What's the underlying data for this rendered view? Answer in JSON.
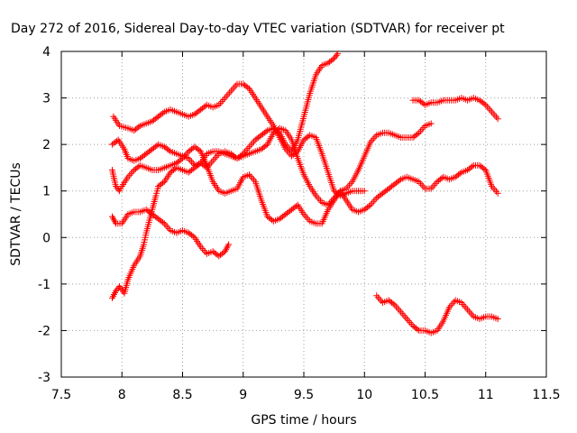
{
  "chart_data": {
    "type": "scatter",
    "title": "Day 272 of 2016, Sidereal Day-to-day VTEC variation (SDTVAR) for receiver pt",
    "xlabel": "GPS time / hours",
    "ylabel": "SDTVAR / TECUs",
    "xlim": [
      7.5,
      11.5
    ],
    "ylim": [
      -3,
      4
    ],
    "xticks": [
      7.5,
      8,
      8.5,
      9,
      9.5,
      10,
      10.5,
      11,
      11.5
    ],
    "xtick_labels": [
      "7.5",
      "8",
      "8.5",
      "9",
      "9.5",
      "10",
      "10.5",
      "11",
      "11.5"
    ],
    "yticks": [
      -3,
      -2,
      -1,
      0,
      1,
      2,
      3,
      4
    ],
    "ytick_labels": [
      "-3",
      "-2",
      "-1",
      "0",
      "1",
      "2",
      "3",
      "4"
    ],
    "grid": true,
    "marker": "+",
    "color": "#ff0000",
    "series": [
      {
        "name": "s1",
        "points": [
          [
            7.93,
            2.6
          ],
          [
            7.98,
            2.4
          ],
          [
            8.05,
            2.35
          ],
          [
            8.1,
            2.3
          ],
          [
            8.15,
            2.4
          ],
          [
            8.2,
            2.45
          ],
          [
            8.25,
            2.5
          ],
          [
            8.3,
            2.6
          ],
          [
            8.35,
            2.7
          ],
          [
            8.4,
            2.75
          ],
          [
            8.45,
            2.7
          ],
          [
            8.5,
            2.65
          ],
          [
            8.55,
            2.6
          ],
          [
            8.6,
            2.65
          ],
          [
            8.65,
            2.75
          ],
          [
            8.7,
            2.85
          ],
          [
            8.75,
            2.8
          ],
          [
            8.8,
            2.85
          ],
          [
            8.85,
            3.0
          ],
          [
            8.9,
            3.15
          ],
          [
            8.95,
            3.3
          ],
          [
            9.0,
            3.3
          ],
          [
            9.05,
            3.2
          ],
          [
            9.1,
            3.0
          ],
          [
            9.15,
            2.8
          ],
          [
            9.2,
            2.6
          ],
          [
            9.25,
            2.4
          ],
          [
            9.3,
            2.15
          ],
          [
            9.35,
            1.9
          ],
          [
            9.4,
            1.75
          ],
          [
            9.45,
            1.85
          ],
          [
            9.5,
            2.1
          ],
          [
            9.55,
            2.2
          ],
          [
            9.6,
            2.15
          ],
          [
            9.65,
            1.8
          ],
          [
            9.7,
            1.4
          ],
          [
            9.75,
            1.0
          ],
          [
            9.8,
            0.9
          ],
          [
            9.85,
            0.95
          ],
          [
            9.9,
            1.0
          ],
          [
            9.95,
            1.0
          ],
          [
            10.0,
            1.0
          ]
        ]
      },
      {
        "name": "s2",
        "points": [
          [
            7.92,
            2.0
          ],
          [
            7.97,
            2.1
          ],
          [
            8.02,
            1.9
          ],
          [
            8.05,
            1.7
          ],
          [
            8.1,
            1.65
          ],
          [
            8.15,
            1.7
          ],
          [
            8.2,
            1.8
          ],
          [
            8.25,
            1.9
          ],
          [
            8.3,
            2.0
          ],
          [
            8.35,
            1.95
          ],
          [
            8.4,
            1.85
          ],
          [
            8.45,
            1.8
          ],
          [
            8.5,
            1.75
          ],
          [
            8.55,
            1.7
          ],
          [
            8.6,
            1.55
          ],
          [
            8.65,
            1.6
          ],
          [
            8.7,
            1.8
          ],
          [
            8.75,
            1.85
          ],
          [
            8.8,
            1.85
          ],
          [
            8.85,
            1.8
          ],
          [
            8.9,
            1.75
          ],
          [
            8.95,
            1.7
          ],
          [
            9.0,
            1.75
          ],
          [
            9.05,
            1.8
          ],
          [
            9.1,
            1.85
          ],
          [
            9.15,
            1.9
          ],
          [
            9.2,
            2.0
          ],
          [
            9.25,
            2.25
          ],
          [
            9.3,
            2.35
          ],
          [
            9.35,
            2.3
          ],
          [
            9.4,
            2.1
          ],
          [
            9.45,
            1.7
          ],
          [
            9.5,
            1.35
          ],
          [
            9.55,
            1.1
          ],
          [
            9.6,
            0.9
          ],
          [
            9.65,
            0.75
          ],
          [
            9.7,
            0.7
          ],
          [
            9.75,
            0.85
          ],
          [
            9.8,
            1.0
          ],
          [
            9.85,
            1.05
          ],
          [
            9.9,
            1.2
          ],
          [
            9.95,
            1.45
          ],
          [
            10.0,
            1.75
          ],
          [
            10.05,
            2.05
          ],
          [
            10.1,
            2.2
          ],
          [
            10.15,
            2.25
          ],
          [
            10.2,
            2.25
          ],
          [
            10.25,
            2.2
          ],
          [
            10.3,
            2.15
          ],
          [
            10.35,
            2.15
          ],
          [
            10.4,
            2.15
          ],
          [
            10.45,
            2.25
          ],
          [
            10.5,
            2.4
          ],
          [
            10.55,
            2.45
          ]
        ]
      },
      {
        "name": "s3",
        "points": [
          [
            7.92,
            1.45
          ],
          [
            7.95,
            1.1
          ],
          [
            7.98,
            1.0
          ],
          [
            8.0,
            1.1
          ],
          [
            8.05,
            1.3
          ],
          [
            8.1,
            1.45
          ],
          [
            8.15,
            1.55
          ],
          [
            8.2,
            1.5
          ],
          [
            8.25,
            1.45
          ],
          [
            8.3,
            1.45
          ],
          [
            8.35,
            1.5
          ],
          [
            8.4,
            1.55
          ],
          [
            8.45,
            1.6
          ],
          [
            8.5,
            1.7
          ],
          [
            8.55,
            1.85
          ],
          [
            8.6,
            1.95
          ],
          [
            8.65,
            1.85
          ],
          [
            8.7,
            1.55
          ],
          [
            8.75,
            1.2
          ],
          [
            8.8,
            1.0
          ],
          [
            8.85,
            0.95
          ],
          [
            8.9,
            1.0
          ],
          [
            8.95,
            1.05
          ],
          [
            9.0,
            1.3
          ],
          [
            9.05,
            1.35
          ],
          [
            9.1,
            1.2
          ],
          [
            9.15,
            0.8
          ],
          [
            9.2,
            0.45
          ],
          [
            9.25,
            0.35
          ],
          [
            9.3,
            0.4
          ],
          [
            9.35,
            0.5
          ],
          [
            9.4,
            0.6
          ],
          [
            9.45,
            0.7
          ],
          [
            9.5,
            0.5
          ],
          [
            9.55,
            0.35
          ],
          [
            9.6,
            0.3
          ],
          [
            9.65,
            0.3
          ],
          [
            9.7,
            0.6
          ],
          [
            9.75,
            0.8
          ],
          [
            9.8,
            1.0
          ],
          [
            9.85,
            0.8
          ],
          [
            9.9,
            0.6
          ],
          [
            9.95,
            0.55
          ],
          [
            10.0,
            0.6
          ],
          [
            10.05,
            0.7
          ],
          [
            10.1,
            0.85
          ],
          [
            10.15,
            0.95
          ],
          [
            10.2,
            1.05
          ],
          [
            10.25,
            1.15
          ],
          [
            10.3,
            1.25
          ],
          [
            10.35,
            1.3
          ],
          [
            10.4,
            1.25
          ],
          [
            10.45,
            1.2
          ],
          [
            10.5,
            1.05
          ],
          [
            10.55,
            1.05
          ],
          [
            10.6,
            1.2
          ],
          [
            10.65,
            1.3
          ],
          [
            10.7,
            1.25
          ],
          [
            10.75,
            1.3
          ],
          [
            10.8,
            1.4
          ],
          [
            10.85,
            1.45
          ],
          [
            10.9,
            1.55
          ],
          [
            10.95,
            1.55
          ],
          [
            11.0,
            1.45
          ],
          [
            11.05,
            1.1
          ],
          [
            11.1,
            0.95
          ]
        ]
      },
      {
        "name": "s4",
        "points": [
          [
            7.92,
            0.45
          ],
          [
            7.95,
            0.3
          ],
          [
            8.0,
            0.3
          ],
          [
            8.05,
            0.5
          ],
          [
            8.1,
            0.55
          ],
          [
            8.15,
            0.55
          ],
          [
            8.2,
            0.6
          ],
          [
            8.25,
            0.5
          ],
          [
            8.3,
            0.4
          ],
          [
            8.35,
            0.3
          ],
          [
            8.4,
            0.15
          ],
          [
            8.45,
            0.1
          ],
          [
            8.5,
            0.15
          ],
          [
            8.55,
            0.1
          ],
          [
            8.6,
            0.0
          ],
          [
            8.65,
            -0.2
          ],
          [
            8.7,
            -0.35
          ],
          [
            8.75,
            -0.3
          ],
          [
            8.8,
            -0.4
          ],
          [
            8.85,
            -0.3
          ],
          [
            8.88,
            -0.15
          ]
        ]
      },
      {
        "name": "s5",
        "points": [
          [
            7.92,
            -1.3
          ],
          [
            7.95,
            -1.15
          ],
          [
            7.98,
            -1.05
          ],
          [
            8.02,
            -1.2
          ],
          [
            8.05,
            -0.9
          ],
          [
            8.1,
            -0.6
          ],
          [
            8.15,
            -0.4
          ],
          [
            8.18,
            -0.15
          ],
          [
            8.2,
            0.1
          ],
          [
            8.25,
            0.6
          ],
          [
            8.28,
            0.9
          ],
          [
            8.3,
            1.1
          ],
          [
            8.35,
            1.2
          ],
          [
            8.4,
            1.4
          ],
          [
            8.45,
            1.5
          ],
          [
            8.5,
            1.45
          ],
          [
            8.55,
            1.4
          ],
          [
            8.6,
            1.5
          ],
          [
            8.65,
            1.6
          ],
          [
            8.7,
            1.5
          ],
          [
            8.75,
            1.65
          ],
          [
            8.8,
            1.8
          ],
          [
            8.85,
            1.85
          ],
          [
            8.9,
            1.8
          ],
          [
            8.95,
            1.7
          ],
          [
            9.0,
            1.8
          ],
          [
            9.05,
            1.95
          ],
          [
            9.1,
            2.1
          ],
          [
            9.15,
            2.2
          ],
          [
            9.2,
            2.3
          ],
          [
            9.25,
            2.35
          ],
          [
            9.3,
            2.25
          ],
          [
            9.35,
            2.0
          ],
          [
            9.4,
            1.85
          ],
          [
            9.45,
            2.1
          ],
          [
            9.5,
            2.6
          ],
          [
            9.55,
            3.1
          ],
          [
            9.6,
            3.5
          ],
          [
            9.65,
            3.7
          ],
          [
            9.7,
            3.75
          ],
          [
            9.75,
            3.85
          ],
          [
            9.78,
            3.95
          ]
        ]
      },
      {
        "name": "s6",
        "points": [
          [
            10.1,
            -1.25
          ],
          [
            10.15,
            -1.4
          ],
          [
            10.2,
            -1.35
          ],
          [
            10.25,
            -1.45
          ],
          [
            10.3,
            -1.6
          ],
          [
            10.35,
            -1.75
          ],
          [
            10.4,
            -1.9
          ],
          [
            10.45,
            -2.0
          ],
          [
            10.5,
            -2.0
          ],
          [
            10.55,
            -2.05
          ],
          [
            10.6,
            -2.0
          ],
          [
            10.65,
            -1.8
          ],
          [
            10.7,
            -1.5
          ],
          [
            10.75,
            -1.35
          ],
          [
            10.8,
            -1.4
          ],
          [
            10.85,
            -1.55
          ],
          [
            10.9,
            -1.7
          ],
          [
            10.95,
            -1.75
          ],
          [
            11.0,
            -1.7
          ],
          [
            11.05,
            -1.7
          ],
          [
            11.1,
            -1.75
          ]
        ]
      },
      {
        "name": "s7",
        "points": [
          [
            10.4,
            2.95
          ],
          [
            10.45,
            2.95
          ],
          [
            10.5,
            2.85
          ],
          [
            10.55,
            2.9
          ],
          [
            10.6,
            2.9
          ],
          [
            10.65,
            2.95
          ],
          [
            10.7,
            2.95
          ],
          [
            10.75,
            2.95
          ],
          [
            10.8,
            3.0
          ],
          [
            10.85,
            2.95
          ],
          [
            10.9,
            3.0
          ],
          [
            10.95,
            2.95
          ],
          [
            11.0,
            2.85
          ],
          [
            11.05,
            2.7
          ],
          [
            11.1,
            2.55
          ]
        ]
      }
    ]
  }
}
